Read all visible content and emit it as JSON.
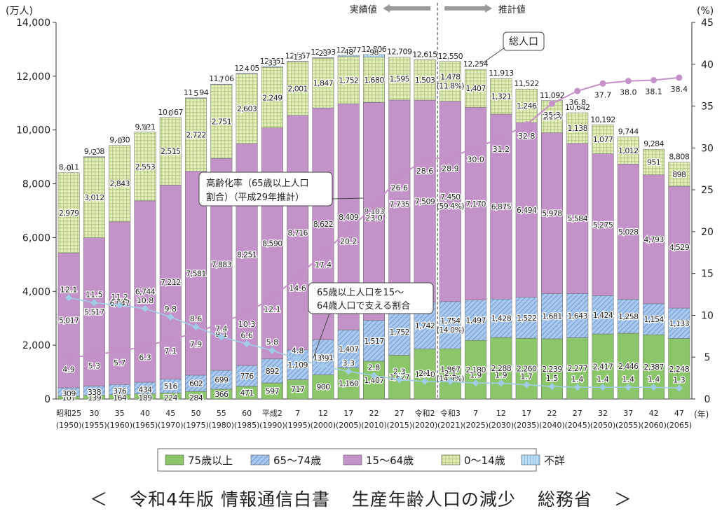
{
  "chart_data": {
    "type": "bar",
    "stacked": true,
    "y_unit_label": "(万人)",
    "y2_unit_label": "(%)",
    "x_unit_label": "(年)",
    "ylim": [
      0,
      14000
    ],
    "y_ticks": [
      "0",
      "2,000",
      "4,000",
      "6,000",
      "8,000",
      "10,000",
      "12,000",
      "14,000"
    ],
    "y2lim": [
      0,
      45
    ],
    "y2_ticks": [
      "0",
      "5",
      "10",
      "15",
      "20",
      "25",
      "30",
      "35",
      "40",
      "45"
    ],
    "categories": [
      [
        "昭和25",
        "(1950)"
      ],
      [
        "30",
        "(1955)"
      ],
      [
        "35",
        "(1960)"
      ],
      [
        "40",
        "(1965)"
      ],
      [
        "45",
        "(1970)"
      ],
      [
        "50",
        "(1975)"
      ],
      [
        "55",
        "(1980)"
      ],
      [
        "60",
        "(1985)"
      ],
      [
        "平成2",
        "(1990)"
      ],
      [
        "7",
        "(1995)"
      ],
      [
        "12",
        "(2000)"
      ],
      [
        "17",
        "(2005)"
      ],
      [
        "22",
        "(2010)"
      ],
      [
        "27",
        "(2015)"
      ],
      [
        "令和2",
        "(2020)"
      ],
      [
        "令和3",
        "(2021)"
      ],
      [
        "7",
        "(2025)"
      ],
      [
        "12",
        "(2030)"
      ],
      [
        "17",
        "(2035)"
      ],
      [
        "22",
        "(2040)"
      ],
      [
        "27",
        "(2045)"
      ],
      [
        "32",
        "(2050)"
      ],
      [
        "37",
        "(2055)"
      ],
      [
        "42",
        "(2060)"
      ],
      [
        "47",
        "(2065)"
      ]
    ],
    "totals": [
      "8,411",
      "9,008",
      "9,430",
      "9,921",
      "10,467",
      "11,194",
      "11,706",
      "12,105",
      "12,361",
      "12,557",
      "12,693",
      "12,777",
      "12,806",
      "12,709",
      "12,615",
      "12,550",
      "12,254",
      "11,913",
      "11,522",
      "11,092",
      "10,642",
      "10,192",
      "9,744",
      "9,284",
      "8,808"
    ],
    "series": [
      {
        "name": "75歳以上",
        "color": "#8cc66a",
        "values": [
          107,
          139,
          164,
          189,
          224,
          284,
          366,
          471,
          597,
          717,
          900,
          1160,
          1407,
          1627,
          1860,
          1867,
          2180,
          2288,
          2260,
          2239,
          2277,
          2417,
          2446,
          2387,
          2248
        ],
        "labels": [
          "107",
          "139",
          "164",
          "189",
          "224",
          "284",
          "366",
          "471",
          "597",
          "717",
          "900",
          "1,160",
          "1,407",
          "1,627",
          "1,860",
          "1,867\n(14.9%)",
          "2,180",
          "2,288",
          "2,260",
          "2,239",
          "2,277",
          "2,417",
          "2,446",
          "2,387",
          "2,248"
        ]
      },
      {
        "name": "65～74歳",
        "color": "#a9c8ee",
        "values": [
          309,
          338,
          376,
          434,
          516,
          602,
          699,
          776,
          892,
          1109,
          1301,
          1407,
          1517,
          1752,
          1742,
          1754,
          1497,
          1428,
          1522,
          1681,
          1643,
          1424,
          1258,
          1154,
          1133
        ],
        "labels": [
          "309",
          "338",
          "376",
          "434",
          "516",
          "602",
          "699",
          "776",
          "892",
          "1,109",
          "1,301",
          "1,407",
          "1,517",
          "1,752",
          "1,742",
          "1,754\n(14.0%)",
          "1,497",
          "1,428",
          "1,522",
          "1,681",
          "1,643",
          "1,424",
          "1,258",
          "1,154",
          "1,133"
        ]
      },
      {
        "name": "15～64歳",
        "color": "#c292c8",
        "values": [
          5017,
          5517,
          6047,
          6744,
          7212,
          7581,
          7883,
          8251,
          8590,
          8716,
          8622,
          8409,
          8103,
          7735,
          7509,
          7450,
          7170,
          6875,
          6494,
          5978,
          5584,
          5275,
          5028,
          4793,
          4529
        ],
        "labels": [
          "5,017",
          "5,517",
          "6,047",
          "6,744",
          "7,212",
          "7,581",
          "7,883",
          "8,251",
          "8,590",
          "8,716",
          "8,622",
          "8,409",
          "8,103",
          "7,735",
          "7,509",
          "7,450\n(59.4%)",
          "7,170",
          "6,875",
          "6,494",
          "5,978",
          "5,584",
          "5,275",
          "5,028",
          "4,793",
          "4,529"
        ]
      },
      {
        "name": "0～14歳",
        "color": "#e4f0bc",
        "values": [
          2979,
          3012,
          2843,
          2553,
          2515,
          2722,
          2751,
          2603,
          2249,
          2001,
          1847,
          1752,
          1680,
          1595,
          1503,
          1478,
          1407,
          1321,
          1246,
          1194,
          1138,
          1077,
          1012,
          951,
          898
        ],
        "labels": [
          "2,979",
          "3,012",
          "2,843",
          "2,553",
          "2,515",
          "2,722",
          "2,751",
          "2,603",
          "2,249",
          "2,001",
          "1,847",
          "1,752",
          "1,680",
          "1,595",
          "1,503",
          "1,478\n(11.8%)",
          "1,407",
          "1,321",
          "1,246",
          "1,194",
          "1,138",
          "1,077",
          "1,012",
          "951",
          "898"
        ]
      },
      {
        "name": "不詳",
        "color": "#b9dcf2",
        "values": [
          0,
          2,
          0,
          0,
          0,
          5,
          7,
          4,
          33,
          13,
          23,
          48,
          98,
          0,
          0,
          0,
          0,
          0,
          0,
          0,
          0,
          0,
          0,
          0,
          0
        ],
        "labels": [
          "0",
          "2",
          "0",
          "0",
          "0",
          "5",
          "7",
          "4",
          "33",
          "13",
          "23",
          "48",
          "98",
          "",
          "",
          "",
          "",
          "",
          "",
          "",
          "",
          "",
          "",
          "",
          ""
        ]
      }
    ],
    "line_series": [
      {
        "name": "高齢化率（65歳以上人口割合）（平成29年推計）",
        "axis": "y2",
        "color": "#c591c9",
        "values": [
          4.9,
          5.3,
          5.7,
          6.3,
          7.1,
          7.9,
          9.1,
          10.3,
          12.1,
          14.6,
          17.4,
          20.2,
          23.0,
          26.6,
          28.6,
          28.9,
          30.0,
          31.2,
          32.8,
          35.3,
          36.8,
          37.7,
          38.0,
          38.1,
          38.4
        ],
        "labels": [
          "4.9",
          "5.3",
          "5.7",
          "6.3",
          "7.1",
          "7.9",
          "9.1",
          "10.3",
          "12.1",
          "14.6",
          "17.4",
          "20.2",
          "23.0",
          "26.6",
          "28.6",
          "28.9",
          "30.0",
          "31.2",
          "32.8",
          "35.3",
          "36.8",
          "37.7",
          "38.0",
          "38.1",
          "38.4"
        ]
      },
      {
        "name": "65歳以上人口を15～64歳人口で支える割合",
        "axis": "y2",
        "color": "#9fcde9",
        "values": [
          12.1,
          11.5,
          11.2,
          10.8,
          9.8,
          8.6,
          7.4,
          6.6,
          5.8,
          4.8,
          3.9,
          3.3,
          2.8,
          2.3,
          2.1,
          2.1,
          1.9,
          1.9,
          1.7,
          1.5,
          1.4,
          1.4,
          1.4,
          1.4,
          1.3
        ],
        "labels": [
          "12.1",
          "11.5",
          "11.2",
          "10.8",
          "9.8",
          "8.6",
          "7.4",
          "6.6",
          "5.8",
          "4.8",
          "3.9",
          "3.3",
          "2.8",
          "2.3",
          "2.1",
          "2.1",
          "1.9",
          "1.9",
          "1.7",
          "1.5",
          "1.4",
          "1.4",
          "1.4",
          "1.4",
          "1.3"
        ]
      }
    ],
    "annotations": {
      "actual": "実績値",
      "projected": "推計値",
      "total_population": "総人口",
      "aging_rate_line1": "高齢化率（65歳以上人口",
      "aging_rate_line2": "割合）（平成29年推計）",
      "support_line1": "65歳以上人口を15～",
      "support_line2": "64歳人口で支える割合"
    },
    "legend_position": "bottom",
    "grid": false
  },
  "caption": {
    "open": "＜",
    "part1": "令和4年版 情報通信白書",
    "part2": "生産年齢人口の減少",
    "part3": "総務省",
    "close": "＞"
  },
  "colors": {
    "axis": "#333333",
    "hatch": "#5a86c8",
    "dots": "#9fb868"
  }
}
